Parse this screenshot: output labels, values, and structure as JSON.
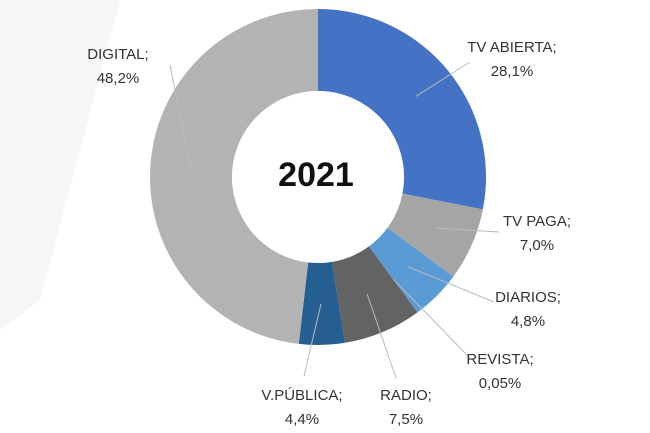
{
  "chart_data": {
    "type": "donut",
    "center_label": "2021",
    "categories": [
      "TV ABIERTA;",
      "TV PAGA;",
      "DIARIOS;",
      "REVISTA;",
      "RADIO;",
      "V.PÚBLICA;",
      "DIGITAL;"
    ],
    "values": [
      28.1,
      7.0,
      4.8,
      0.05,
      7.5,
      4.4,
      48.2
    ],
    "value_labels": [
      "28,1%",
      "7,0%",
      "4,8%",
      "0,05%",
      "7,5%",
      "4,4%",
      "48,2%"
    ],
    "colors": [
      "#4472c4",
      "#a5a5a5",
      "#5b9bd5",
      "#4472c4",
      "#636363",
      "#255e91",
      "#b3b3b3"
    ]
  }
}
